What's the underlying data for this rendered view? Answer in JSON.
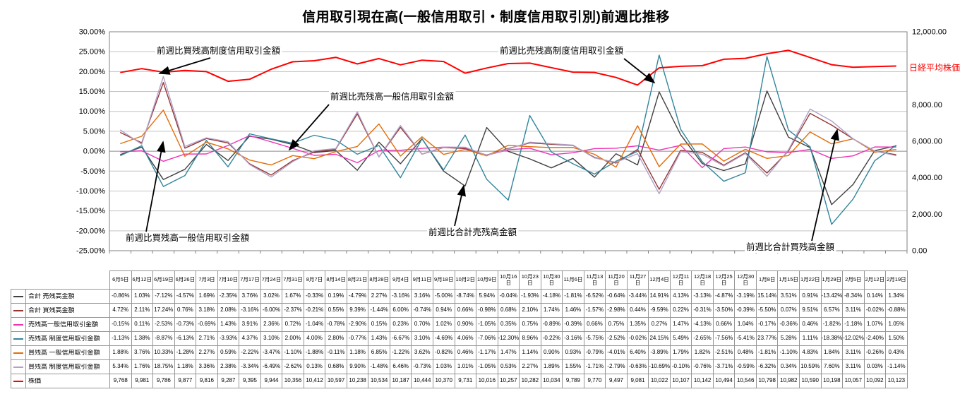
{
  "title": "信用取引現在高(一般信用取引・制度信用取引別)前週比推移",
  "right_axis_title": "日経平均株価",
  "chart_data": {
    "type": "line",
    "categories": [
      "6月5日",
      "6月12日",
      "6月19日",
      "6月26日",
      "7月3日",
      "7月10日",
      "7月17日",
      "7月24日",
      "7月31日",
      "8月7日",
      "8月14日",
      "8月21日",
      "8月28日",
      "9月4日",
      "9月11日",
      "9月18日",
      "10月2日",
      "10月9日",
      "10月16日",
      "10月23日",
      "10月30日",
      "11月6日",
      "11月13日",
      "11月20日",
      "11月27日",
      "12月4日",
      "12月11日",
      "12月18日",
      "12月25日",
      "12月30日",
      "1月8日",
      "1月15日",
      "1月22日",
      "1月29日",
      "2月5日",
      "2月12日",
      "2月19日"
    ],
    "left_axis": {
      "min": -25,
      "max": 30,
      "step": 5,
      "format": "percent"
    },
    "right_axis": {
      "min": 0,
      "max": 12000,
      "step": 2000,
      "format": "number"
    },
    "grid": true,
    "legend_position": "data-table",
    "series": [
      {
        "name": "合計 売残高金額",
        "color": "#404040",
        "axis": "left",
        "values": [
          -0.86,
          1.03,
          -7.12,
          -4.57,
          1.69,
          -2.35,
          3.76,
          3.02,
          1.67,
          -0.33,
          0.19,
          -4.79,
          2.27,
          -3.16,
          3.16,
          -5.0,
          -8.74,
          5.94,
          -0.04,
          -1.93,
          -4.18,
          -1.81,
          -6.52,
          -0.64,
          -3.44,
          14.91,
          4.13,
          -3.13,
          -4.87,
          -3.19,
          15.14,
          3.51,
          0.91,
          -13.42,
          -8.34,
          0.14,
          1.34
        ]
      },
      {
        "name": "合計 買残高金額",
        "color": "#953735",
        "axis": "left",
        "values": [
          4.72,
          2.11,
          17.24,
          0.76,
          3.18,
          2.08,
          -3.16,
          -6.0,
          -2.37,
          -0.21,
          0.55,
          9.39,
          -1.44,
          6.0,
          -0.74,
          0.94,
          0.66,
          -0.98,
          0.68,
          2.1,
          1.74,
          1.46,
          -1.57,
          -2.98,
          0.44,
          -9.59,
          0.22,
          -0.31,
          -3.5,
          -0.39,
          -5.5,
          0.07,
          9.51,
          6.57,
          3.11,
          -0.02,
          -0.88
        ]
      },
      {
        "name": "売残高一般信用取引金額",
        "color": "#EE33B8",
        "axis": "left",
        "values": [
          -0.15,
          0.11,
          -2.53,
          -0.73,
          -0.69,
          1.43,
          3.91,
          2.36,
          0.72,
          -1.04,
          -0.78,
          -2.9,
          0.15,
          0.23,
          0.7,
          1.02,
          0.9,
          -1.05,
          0.35,
          0.75,
          -0.89,
          -0.39,
          0.66,
          0.75,
          1.35,
          0.27,
          1.47,
          -4.13,
          0.66,
          1.04,
          -0.17,
          -0.36,
          0.46,
          -1.82,
          -1.18,
          1.07,
          1.05
        ]
      },
      {
        "name": "売残高 制度信用取引金額",
        "color": "#31859B",
        "axis": "left",
        "values": [
          -1.13,
          1.38,
          -8.87,
          -6.13,
          2.71,
          -3.93,
          4.37,
          3.1,
          2.0,
          4.0,
          2.8,
          -0.77,
          1.43,
          -6.67,
          3.1,
          -4.69,
          4.06,
          -7.06,
          -12.3,
          8.96,
          -0.22,
          -3.16,
          -5.75,
          -2.52,
          -0.02,
          24.15,
          5.49,
          -2.65,
          -7.56,
          -5.41,
          23.77,
          5.28,
          1.11,
          -18.38,
          -12.02,
          -2.4,
          1.5
        ]
      },
      {
        "name": "買残高 一般信用取引金額",
        "color": "#E36C09",
        "axis": "left",
        "values": [
          1.88,
          3.76,
          10.33,
          -1.28,
          2.27,
          0.59,
          -2.22,
          -3.47,
          -1.1,
          -1.88,
          -0.11,
          1.18,
          6.85,
          -1.22,
          3.62,
          -0.82,
          0.46,
          -1.17,
          1.47,
          1.14,
          0.9,
          0.93,
          -0.79,
          -4.01,
          6.4,
          -3.89,
          1.79,
          1.82,
          -2.51,
          0.48,
          -1.81,
          -1.1,
          4.83,
          1.84,
          3.11,
          -0.26,
          0.43
        ]
      },
      {
        "name": "買残高 制度信用取引金額",
        "color": "#B1A0C7",
        "axis": "left",
        "values": [
          5.34,
          1.76,
          18.75,
          1.18,
          3.36,
          2.38,
          -3.34,
          -6.49,
          -2.62,
          0.13,
          0.68,
          9.9,
          -1.48,
          6.46,
          -0.73,
          1.03,
          1.01,
          -1.05,
          0.53,
          2.27,
          1.89,
          1.55,
          -1.71,
          -2.79,
          -0.63,
          -10.69,
          -0.1,
          -0.76,
          -3.71,
          -0.59,
          -6.32,
          0.34,
          10.59,
          7.6,
          3.11,
          0.03,
          -1.14
        ]
      },
      {
        "name": "株価",
        "color": "#FF0000",
        "axis": "right",
        "values": [
          9768,
          9981,
          9786,
          9877,
          9816,
          9287,
          9395,
          9944,
          10356,
          10412,
          10597,
          10238,
          10534,
          10187,
          10444,
          10370,
          9731,
          10016,
          10257,
          10282,
          10034,
          9789,
          9770,
          9497,
          9081,
          10022,
          10107,
          10142,
          10494,
          10546,
          10798,
          10982,
          10590,
          10198,
          10057,
          10092,
          10123
        ]
      }
    ],
    "annotations": [
      {
        "text": "前週比買残高制度信用取引金額",
        "x": 222,
        "y": 76,
        "arrow": [
          298,
          82,
          226,
          104
        ]
      },
      {
        "text": "前週比売残高制度信用取引金額",
        "x": 708,
        "y": 76,
        "arrow": [
          884,
          83,
          927,
          117
        ]
      },
      {
        "text": "前週比売残高一般信用取引金額",
        "x": 468,
        "y": 141,
        "arrow": [
          466,
          148,
          410,
          212
        ]
      },
      {
        "text": "前週比買残高一般信用取引金額",
        "x": 178,
        "y": 341,
        "arrow": [
          207,
          328,
          231,
          201
        ]
      },
      {
        "text": "前週比合計売残高金額",
        "x": 607,
        "y": 333,
        "arrow": [
          644,
          320,
          657,
          263
        ]
      },
      {
        "text": "前週比合計買残高金額",
        "x": 1057,
        "y": 354,
        "arrow": [
          1150,
          341,
          1186,
          184
        ]
      }
    ]
  }
}
